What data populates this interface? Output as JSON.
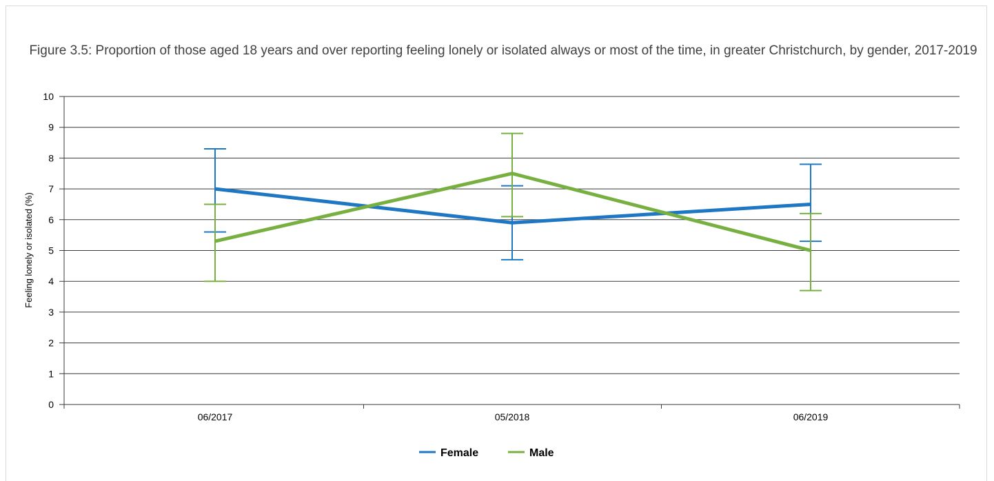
{
  "chart_data": {
    "type": "line",
    "title": "Figure 3.5: Proportion of those aged 18 years and over reporting feeling lonely or isolated always or most of the time, in greater Christchurch, by gender, 2017-2019",
    "xlabel": "",
    "ylabel": "Feeling lonely or isolated (%)",
    "categories": [
      "06/2017",
      "05/2018",
      "06/2019"
    ],
    "ylim": [
      0,
      10
    ],
    "yticks": [
      "0",
      "1",
      "2",
      "3",
      "4",
      "5",
      "6",
      "7",
      "8",
      "9",
      "10"
    ],
    "grid": true,
    "legend_position": "bottom",
    "series": [
      {
        "name": "Female",
        "color": "#1f77c4",
        "values": [
          7.0,
          5.9,
          6.5
        ],
        "error_low": [
          5.6,
          4.7,
          5.3
        ],
        "error_high": [
          8.3,
          7.1,
          7.8
        ]
      },
      {
        "name": "Male",
        "color": "#77b041",
        "values": [
          5.3,
          7.5,
          5.0
        ],
        "error_low": [
          4.0,
          6.1,
          3.7
        ],
        "error_high": [
          6.5,
          8.8,
          6.2
        ]
      }
    ]
  }
}
